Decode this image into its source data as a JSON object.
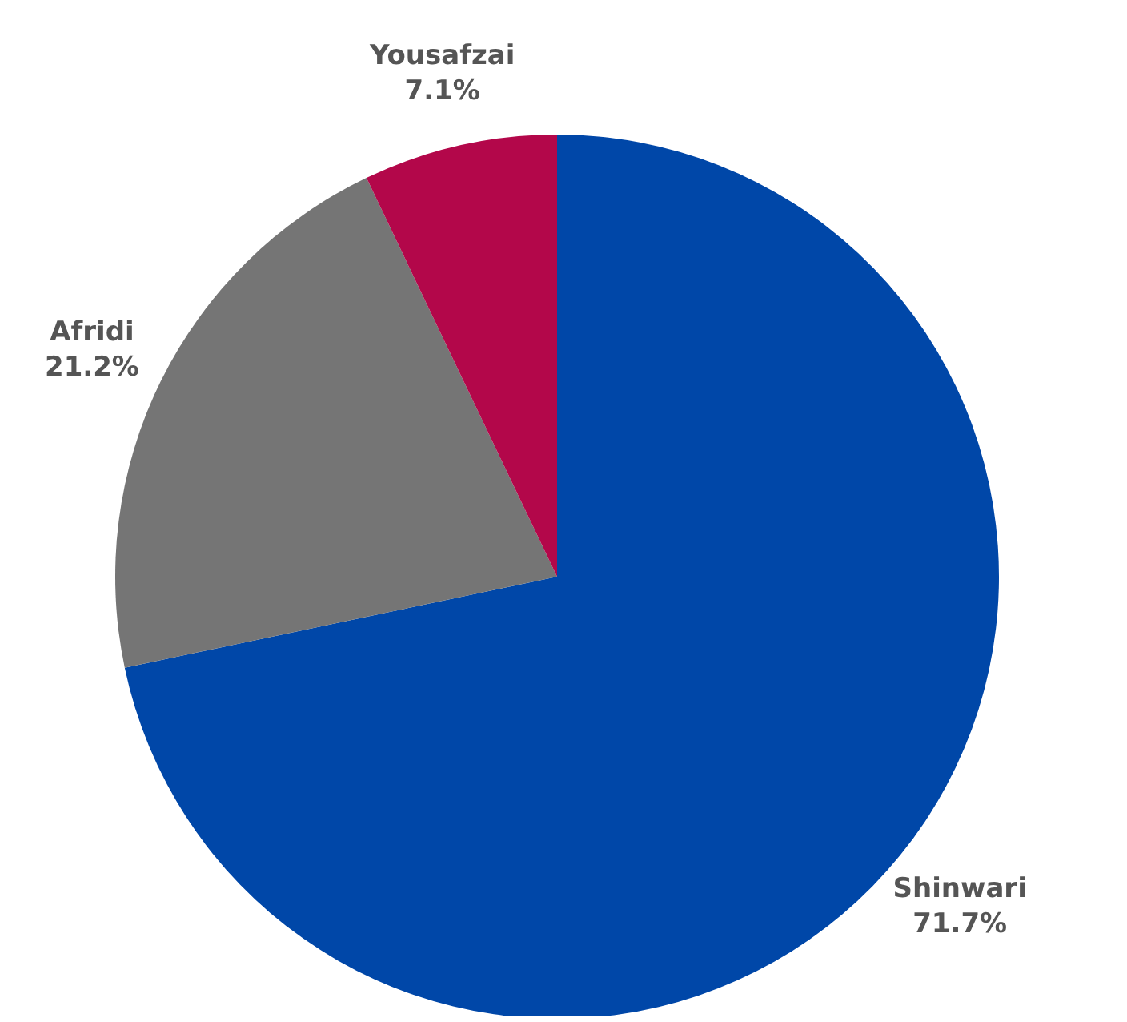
{
  "chart_data": {
    "type": "pie",
    "categories": [
      "Shinwari",
      "Afridi",
      "Yousafzai"
    ],
    "values": [
      71.7,
      21.2,
      7.1
    ],
    "colors": [
      "#0047a8",
      "#757575",
      "#b3074a"
    ],
    "value_labels": [
      "71.7%",
      "21.2%",
      "7.1%"
    ],
    "legend": false
  }
}
